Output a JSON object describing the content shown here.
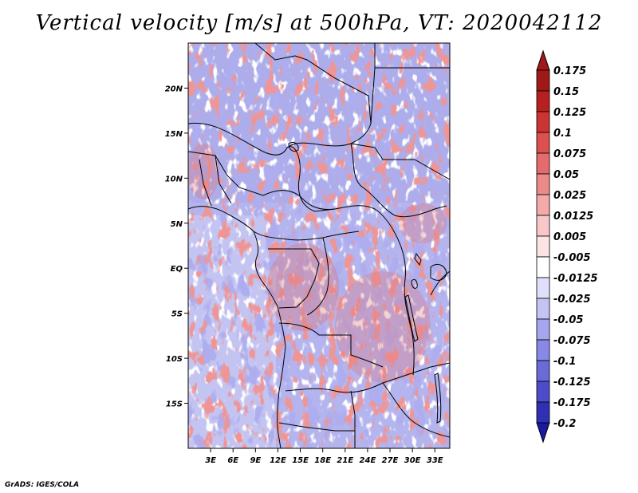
{
  "title": "Vertical velocity [m/s] at 500hPa, VT: 2020042112",
  "credit": "GrADS: IGES/COLA",
  "map": {
    "lon_range": [
      0,
      35
    ],
    "lat_range": [
      -20,
      25
    ],
    "lat_ticks": [
      {
        "value": 20,
        "label": "20N"
      },
      {
        "value": 15,
        "label": "15N"
      },
      {
        "value": 10,
        "label": "10N"
      },
      {
        "value": 5,
        "label": "5N"
      },
      {
        "value": 0,
        "label": "EQ"
      },
      {
        "value": -5,
        "label": "5S"
      },
      {
        "value": -10,
        "label": "10S"
      },
      {
        "value": -15,
        "label": "15S"
      }
    ],
    "lon_ticks": [
      {
        "value": 3,
        "label": "3E"
      },
      {
        "value": 6,
        "label": "6E"
      },
      {
        "value": 9,
        "label": "9E"
      },
      {
        "value": 12,
        "label": "12E"
      },
      {
        "value": 15,
        "label": "15E"
      },
      {
        "value": 18,
        "label": "18E"
      },
      {
        "value": 21,
        "label": "21E"
      },
      {
        "value": 24,
        "label": "24E"
      },
      {
        "value": 27,
        "label": "27E"
      },
      {
        "value": 30,
        "label": "30E"
      },
      {
        "value": 33,
        "label": "33E"
      }
    ]
  },
  "colorbar": {
    "levels": [
      {
        "label": "0.175",
        "color": "#a01818"
      },
      {
        "label": "0.15",
        "color": "#b82020"
      },
      {
        "label": "0.125",
        "color": "#cc3434"
      },
      {
        "label": "0.1",
        "color": "#dc5050"
      },
      {
        "label": "0.075",
        "color": "#e46c6c"
      },
      {
        "label": "0.05",
        "color": "#ec8a8a"
      },
      {
        "label": "0.025",
        "color": "#f4aaaa"
      },
      {
        "label": "0.0125",
        "color": "#f8c8c8"
      },
      {
        "label": "0.005",
        "color": "#fce4e4"
      },
      {
        "label": "-0.005",
        "color": "#ffffff"
      },
      {
        "label": "-0.0125",
        "color": "#e0e0fa"
      },
      {
        "label": "-0.025",
        "color": "#c4c4f4"
      },
      {
        "label": "-0.05",
        "color": "#a6a6ee"
      },
      {
        "label": "-0.075",
        "color": "#8888e6"
      },
      {
        "label": "-0.1",
        "color": "#6a6ad8"
      },
      {
        "label": "-0.125",
        "color": "#4c4cc8"
      },
      {
        "label": "-0.175",
        "color": "#3030b4"
      },
      {
        "label": "-0.2",
        "color": "#1a1aa0"
      }
    ],
    "top_arrow_color": "#a01818",
    "bottom_arrow_color": "#1a1aa0"
  }
}
